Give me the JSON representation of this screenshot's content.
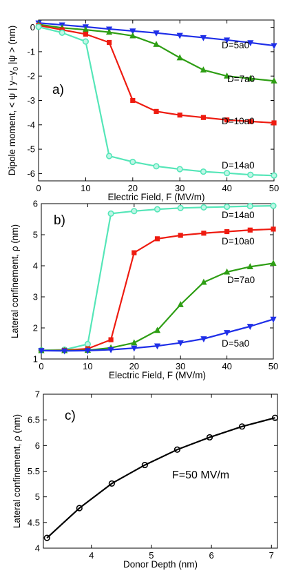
{
  "chart_data": [
    {
      "type": "line",
      "panel_label": "a)",
      "xlabel": "Electric Field, F (MV/m)",
      "ylabel": "Dipole moment, < ψ | y−y",
      "ylabel_sub": "0",
      "ylabel_tail": " |ψ > (nm)",
      "xlim": [
        0,
        50
      ],
      "ylim": [
        -6.3,
        0.3
      ],
      "xticks": [
        0,
        10,
        20,
        30,
        40,
        50
      ],
      "yticks": [
        0,
        -1,
        -2,
        -3,
        -4,
        -5,
        -6
      ],
      "x": [
        0,
        5,
        10,
        15,
        20,
        25,
        30,
        35,
        40,
        45,
        50
      ],
      "series": [
        {
          "name": "D=5a0",
          "color": "#1f2fe8",
          "marker": "triangle-down",
          "values": [
            0.18,
            0.1,
            0.02,
            -0.07,
            -0.15,
            -0.23,
            -0.33,
            -0.42,
            -0.52,
            -0.63,
            -0.75
          ]
        },
        {
          "name": "D=7a0",
          "color": "#2e9e14",
          "marker": "triangle-up",
          "values": [
            0.12,
            -0.02,
            -0.1,
            -0.2,
            -0.35,
            -0.7,
            -1.25,
            -1.75,
            -2.0,
            -2.1,
            -2.2
          ]
        },
        {
          "name": "D=10a0",
          "color": "#ee1b10",
          "marker": "square",
          "values": [
            0.08,
            -0.1,
            -0.28,
            -0.62,
            -3.0,
            -3.45,
            -3.6,
            -3.7,
            -3.8,
            -3.86,
            -3.92
          ]
        },
        {
          "name": "D=14a0",
          "color": "#55e6b8",
          "marker": "circle",
          "values": [
            0.02,
            -0.22,
            -0.58,
            -5.28,
            -5.52,
            -5.7,
            -5.82,
            -5.92,
            -5.98,
            -6.05,
            -6.08
          ]
        }
      ],
      "label_positions": [
        "D=5a0",
        "D=7a0",
        "D=10a0",
        "D=14a0"
      ]
    },
    {
      "type": "line",
      "panel_label": "b)",
      "xlabel": "Electric Field, F (MV/m)",
      "ylabel": "Lateral confinement, ρ  (nm)",
      "xlim": [
        0,
        50
      ],
      "ylim": [
        1,
        6
      ],
      "xticks": [
        0,
        10,
        20,
        30,
        40,
        50
      ],
      "yticks": [
        1,
        2,
        3,
        4,
        5,
        6
      ],
      "x": [
        0,
        5,
        10,
        15,
        20,
        25,
        30,
        35,
        40,
        45,
        50
      ],
      "series": [
        {
          "name": "D=14a0",
          "color": "#55e6b8",
          "marker": "circle",
          "values": [
            1.28,
            1.3,
            1.48,
            5.68,
            5.76,
            5.82,
            5.86,
            5.88,
            5.9,
            5.92,
            5.93
          ]
        },
        {
          "name": "D=10a0",
          "color": "#ee1b10",
          "marker": "square",
          "values": [
            1.27,
            1.28,
            1.33,
            1.62,
            4.42,
            4.87,
            4.98,
            5.05,
            5.1,
            5.15,
            5.18
          ]
        },
        {
          "name": "D=7a0",
          "color": "#2e9e14",
          "marker": "triangle-up",
          "values": [
            1.27,
            1.27,
            1.28,
            1.36,
            1.52,
            1.92,
            2.75,
            3.47,
            3.8,
            3.97,
            4.08
          ]
        },
        {
          "name": "D=5a0",
          "color": "#1f2fe8",
          "marker": "triangle-down",
          "values": [
            1.27,
            1.26,
            1.27,
            1.3,
            1.35,
            1.42,
            1.52,
            1.65,
            1.85,
            2.05,
            2.28
          ]
        }
      ]
    },
    {
      "type": "line",
      "panel_label": "c)",
      "xlabel": "Donor Depth (nm)",
      "ylabel": "Lateral confinement, ρ  (nm)",
      "annotation": "F=50 MV/m",
      "xlim": [
        3.2,
        7.1
      ],
      "ylim": [
        4,
        7
      ],
      "xticks": [
        4,
        5,
        6,
        7
      ],
      "yticks": [
        4,
        4.5,
        5,
        5.5,
        6,
        6.5,
        7
      ],
      "series": [
        {
          "color": "#000000",
          "marker": "circle",
          "x": [
            3.26,
            3.8,
            4.34,
            4.89,
            5.43,
            5.97,
            6.51,
            7.06
          ],
          "values": [
            4.2,
            4.78,
            5.26,
            5.62,
            5.92,
            6.16,
            6.37,
            6.54
          ]
        }
      ]
    }
  ]
}
